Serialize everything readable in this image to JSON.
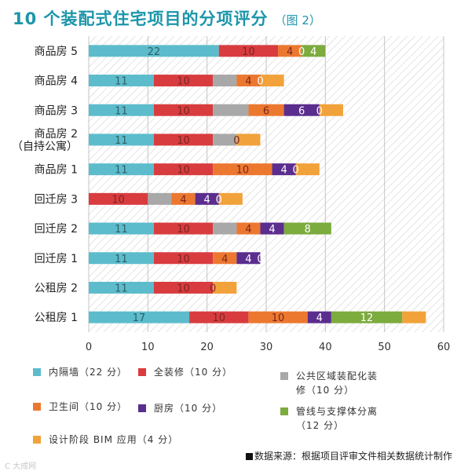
{
  "title": "10 个装配式住宅项目的分项评分",
  "subtitle": "（图 2）",
  "source": "数据来源：根据项目评审文件相关数据统计制作",
  "watermark": "C 大成网",
  "colors": {
    "inner": "#5cbccc",
    "decor": "#d93c3f",
    "public": "#a8a8a8",
    "bath": "#ec7830",
    "kitchen": "#5b2d8e",
    "pipe": "#7cab3e",
    "bim": "#f2a23a",
    "title": "#1c96aa"
  },
  "legend": [
    {
      "key": "inner",
      "label": "内隔墙（22 分）"
    },
    {
      "key": "decor",
      "label": "全装修（10 分）"
    },
    {
      "key": "public",
      "label": "公共区域装配化装修（10 分）"
    },
    {
      "key": "bath",
      "label": "卫生间（10 分）"
    },
    {
      "key": "kitchen",
      "label": "厨房（10 分）"
    },
    {
      "key": "pipe",
      "label": "管线与支撑体分离（12 分）"
    },
    {
      "key": "bim",
      "label": "设计阶段 BIM 应用（4 分）"
    }
  ],
  "chart_data": {
    "type": "bar",
    "orientation": "horizontal",
    "stacked": true,
    "categories": [
      "商品房 5",
      "商品房 4",
      "商品房 3",
      "商品房 2（自持公寓）",
      "商品房 1",
      "回迁房 3",
      "回迁房 2",
      "回迁房 1",
      "公租房 2",
      "公租房 1"
    ],
    "category_lines": [
      [
        "商品房 5"
      ],
      [
        "商品房 4"
      ],
      [
        "商品房 3"
      ],
      [
        "商品房 2",
        "（自持公寓）"
      ],
      [
        "商品房 1"
      ],
      [
        "回迁房 3"
      ],
      [
        "回迁房 2"
      ],
      [
        "回迁房 1"
      ],
      [
        "公租房 2"
      ],
      [
        "公租房 1"
      ]
    ],
    "series": [
      {
        "name": "内隔墙（22 分）",
        "key": "inner",
        "values": [
          22,
          11,
          11,
          11,
          11,
          0,
          11,
          11,
          11,
          17
        ]
      },
      {
        "name": "全装修（10 分）",
        "key": "decor",
        "values": [
          10,
          10,
          10,
          10,
          10,
          10,
          10,
          10,
          10,
          10
        ]
      },
      {
        "name": "公共区域装配化装修（10 分）",
        "key": "public",
        "values": [
          0,
          4,
          6,
          4,
          0,
          4,
          4,
          0,
          0,
          0
        ]
      },
      {
        "name": "卫生间（10 分）",
        "key": "bath",
        "values": [
          4,
          4,
          6,
          0,
          10,
          4,
          4,
          4,
          0,
          10
        ]
      },
      {
        "name": "厨房（10 分）",
        "key": "kitchen",
        "values": [
          0,
          0,
          6,
          0,
          4,
          4,
          4,
          4,
          0,
          4
        ]
      },
      {
        "name": "管线与支撑体分离（12 分）",
        "key": "pipe",
        "values": [
          4,
          0,
          0,
          0,
          0,
          0,
          8,
          0,
          0,
          12
        ]
      },
      {
        "name": "设计阶段 BIM 应用（4 分）",
        "key": "bim",
        "values": [
          0,
          4,
          4,
          4,
          4,
          4,
          0,
          0,
          4,
          4
        ]
      }
    ],
    "data_labels": [
      [
        {
          "key": "inner",
          "text": "22"
        },
        {
          "key": "decor",
          "text": "10"
        },
        {
          "key": "bath",
          "text": "4"
        },
        {
          "key": "kitchen",
          "text": "0"
        },
        {
          "key": "pipe",
          "text": "4"
        }
      ],
      [
        {
          "key": "inner",
          "text": "11"
        },
        {
          "key": "decor",
          "text": "10"
        },
        {
          "key": "bath",
          "text": "4"
        },
        {
          "key": "kitchen",
          "text": "0"
        }
      ],
      [
        {
          "key": "inner",
          "text": "11"
        },
        {
          "key": "decor",
          "text": "10"
        },
        {
          "key": "bath",
          "text": "6"
        },
        {
          "key": "kitchen",
          "text": "6"
        },
        {
          "key": "pipe",
          "text": "0"
        }
      ],
      [
        {
          "key": "inner",
          "text": "11"
        },
        {
          "key": "decor",
          "text": "10"
        },
        {
          "key": "bath",
          "text": "0"
        }
      ],
      [
        {
          "key": "inner",
          "text": "11"
        },
        {
          "key": "decor",
          "text": "10"
        },
        {
          "key": "bath",
          "text": "10"
        },
        {
          "key": "kitchen",
          "text": "4"
        },
        {
          "key": "pipe",
          "text": "0"
        }
      ],
      [
        {
          "key": "decor",
          "text": "10"
        },
        {
          "key": "bath",
          "text": "4"
        },
        {
          "key": "kitchen",
          "text": "4"
        },
        {
          "key": "pipe",
          "text": "0"
        }
      ],
      [
        {
          "key": "inner",
          "text": "11"
        },
        {
          "key": "decor",
          "text": "10"
        },
        {
          "key": "bath",
          "text": "4"
        },
        {
          "key": "kitchen",
          "text": "4"
        },
        {
          "key": "pipe",
          "text": "8"
        }
      ],
      [
        {
          "key": "inner",
          "text": "11"
        },
        {
          "key": "decor",
          "text": "10"
        },
        {
          "key": "bath",
          "text": "4"
        },
        {
          "key": "kitchen",
          "text": "4"
        },
        {
          "key": "pipe",
          "text": "0"
        }
      ],
      [
        {
          "key": "inner",
          "text": "11"
        },
        {
          "key": "decor",
          "text": "10"
        },
        {
          "key": "bath",
          "text": "0"
        }
      ],
      [
        {
          "key": "inner",
          "text": "17"
        },
        {
          "key": "decor",
          "text": "10"
        },
        {
          "key": "bath",
          "text": "10"
        },
        {
          "key": "kitchen",
          "text": "4"
        },
        {
          "key": "pipe",
          "text": "12"
        }
      ]
    ],
    "xlim": [
      0,
      60
    ],
    "xticks": [
      0,
      10,
      20,
      30,
      40,
      50,
      60
    ],
    "grid": true,
    "background_pattern": "diagonal-hatch",
    "legend_position": "bottom"
  }
}
